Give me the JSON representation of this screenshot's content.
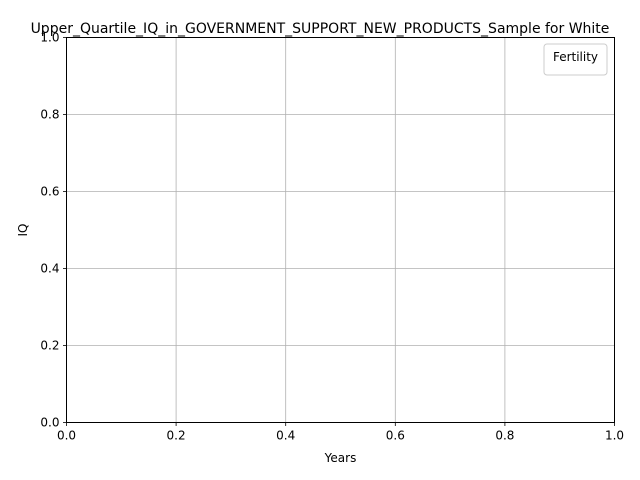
{
  "chart_data": {
    "type": "line",
    "title": "Upper_Quartile_IQ_in_GOVERNMENT_SUPPORT_NEW_PRODUCTS_Sample for White",
    "xlabel": "Years",
    "ylabel": "IQ",
    "xlim": [
      0.0,
      1.0
    ],
    "ylim": [
      0.0,
      1.0
    ],
    "x_ticks": [
      "0.0",
      "0.2",
      "0.4",
      "0.6",
      "0.8",
      "1.0"
    ],
    "y_ticks": [
      "0.0",
      "0.2",
      "0.4",
      "0.6",
      "0.8",
      "1.0"
    ],
    "grid": true,
    "legend": {
      "title": "Fertility",
      "position": "upper-right",
      "entries": []
    },
    "series": [],
    "colors": {
      "grid": "#b0b0b0",
      "axis": "#000000",
      "legend_border": "#cccccc"
    }
  }
}
